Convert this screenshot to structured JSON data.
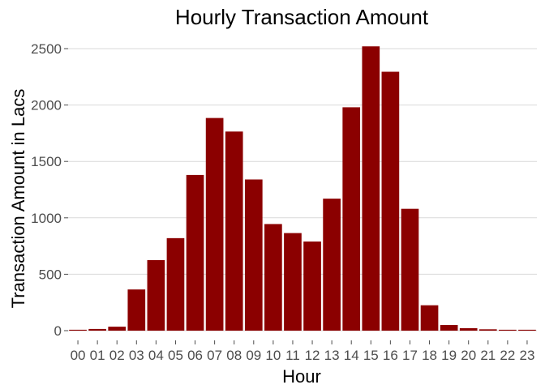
{
  "chart_data": {
    "type": "bar",
    "title": "Hourly Transaction Amount",
    "xlabel": "Hour",
    "ylabel": "Transaction Amount in Lacs",
    "categories": [
      "00",
      "01",
      "02",
      "03",
      "04",
      "05",
      "06",
      "07",
      "08",
      "09",
      "10",
      "11",
      "12",
      "13",
      "14",
      "15",
      "16",
      "17",
      "18",
      "19",
      "20",
      "21",
      "22",
      "23"
    ],
    "values": [
      8,
      15,
      35,
      365,
      625,
      820,
      1380,
      1885,
      1765,
      1340,
      945,
      865,
      790,
      1170,
      1980,
      2520,
      2295,
      1080,
      225,
      50,
      22,
      12,
      8,
      8
    ],
    "ylim": [
      0,
      2600
    ],
    "yticks": [
      0,
      500,
      1000,
      1500,
      2000,
      2500
    ],
    "grid": true,
    "bar_color": "#8B0000"
  }
}
